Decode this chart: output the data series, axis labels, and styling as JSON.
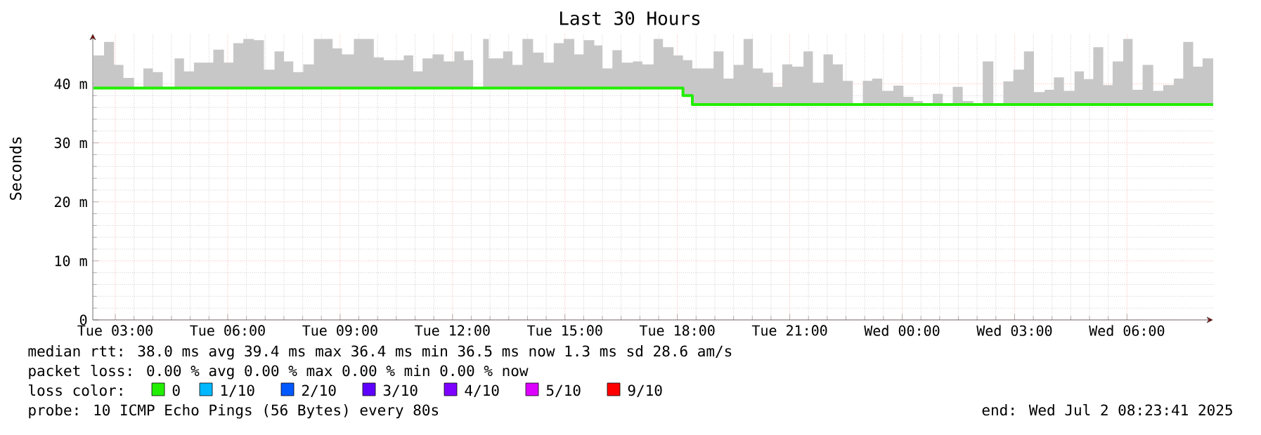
{
  "chart_data": {
    "type": "step",
    "title": "Last 30 Hours",
    "ylabel": "Seconds",
    "legend_title": "loss color:",
    "legend": "bottom",
    "grid": true,
    "xlim": [
      "2025-07-01T02:24",
      "2025-07-02T08:18"
    ],
    "ylim": [
      0,
      48.5
    ],
    "xticks": [
      {
        "value": "2025-07-01T03:00",
        "label": "Tue 03:00"
      },
      {
        "value": "2025-07-01T06:00",
        "label": "Tue 06:00"
      },
      {
        "value": "2025-07-01T09:00",
        "label": "Tue 09:00"
      },
      {
        "value": "2025-07-01T12:00",
        "label": "Tue 12:00"
      },
      {
        "value": "2025-07-01T15:00",
        "label": "Tue 15:00"
      },
      {
        "value": "2025-07-01T18:00",
        "label": "Tue 18:00"
      },
      {
        "value": "2025-07-01T21:00",
        "label": "Tue 21:00"
      },
      {
        "value": "2025-07-02T00:00",
        "label": "Wed 00:00"
      },
      {
        "value": "2025-07-02T03:00",
        "label": "Wed 03:00"
      },
      {
        "value": "2025-07-02T06:00",
        "label": "Wed 06:00"
      }
    ],
    "yticks": [
      0,
      {
        "value": 10,
        "label": "10 m"
      },
      {
        "value": 20,
        "label": "20 m"
      },
      {
        "value": 30,
        "label": "30 m"
      },
      {
        "value": 40,
        "label": "40 m"
      }
    ],
    "series": [
      {
        "name": "0",
        "color": "#22ee00",
        "x": [
          "2025-07-01T02:25",
          "2025-07-01T02:42",
          "2025-07-01T02:58",
          "2025-07-01T03:13",
          "2025-07-01T03:30",
          "2025-07-01T03:45",
          "2025-07-01T04:00",
          "2025-07-01T04:16",
          "2025-07-01T04:35",
          "2025-07-01T04:50",
          "2025-07-01T05:06",
          "2025-07-01T05:37",
          "2025-07-01T05:54",
          "2025-07-01T06:09",
          "2025-07-01T06:25",
          "2025-07-01T06:42",
          "2025-07-01T06:58",
          "2025-07-01T07:15",
          "2025-07-01T07:30",
          "2025-07-01T07:45",
          "2025-07-01T08:01",
          "2025-07-01T08:18",
          "2025-07-01T08:48",
          "2025-07-01T09:03",
          "2025-07-01T09:22",
          "2025-07-01T09:54",
          "2025-07-01T10:10",
          "2025-07-01T10:42",
          "2025-07-01T10:57",
          "2025-07-01T11:12",
          "2025-07-01T11:28",
          "2025-07-01T11:46",
          "2025-07-01T12:03",
          "2025-07-01T12:18",
          "2025-07-01T12:33",
          "2025-07-01T12:49",
          "2025-07-01T12:58",
          "2025-07-01T13:21",
          "2025-07-01T13:36",
          "2025-07-01T13:52",
          "2025-07-01T14:09",
          "2025-07-01T14:26",
          "2025-07-01T14:42",
          "2025-07-01T14:58",
          "2025-07-01T15:15",
          "2025-07-01T15:30",
          "2025-07-01T15:47",
          "2025-07-01T16:00",
          "2025-07-01T16:16",
          "2025-07-01T16:31",
          "2025-07-01T16:49",
          "2025-07-01T17:04",
          "2025-07-01T17:22",
          "2025-07-01T17:37",
          "2025-07-01T17:54",
          "2025-07-01T18:09",
          "2025-07-01T18:24",
          "2025-07-01T18:58",
          "2025-07-01T19:14",
          "2025-07-01T19:30",
          "2025-07-01T19:46",
          "2025-07-01T20:01",
          "2025-07-01T20:17",
          "2025-07-01T20:33",
          "2025-07-01T20:48",
          "2025-07-01T21:04",
          "2025-07-01T21:22",
          "2025-07-01T21:37",
          "2025-07-01T21:54",
          "2025-07-01T22:09",
          "2025-07-01T22:25",
          "2025-07-01T22:41",
          "2025-07-01T22:57",
          "2025-07-01T23:12",
          "2025-07-01T23:28",
          "2025-07-01T23:46",
          "2025-07-02T00:02",
          "2025-07-02T00:18",
          "2025-07-02T00:33",
          "2025-07-02T00:49",
          "2025-07-02T01:05",
          "2025-07-02T01:21",
          "2025-07-02T01:37",
          "2025-07-02T01:54",
          "2025-07-02T02:09",
          "2025-07-02T02:26",
          "2025-07-02T02:42",
          "2025-07-02T02:58",
          "2025-07-02T03:15",
          "2025-07-02T03:31",
          "2025-07-02T03:48",
          "2025-07-02T04:03",
          "2025-07-02T04:19",
          "2025-07-02T04:36",
          "2025-07-02T04:51",
          "2025-07-02T05:06",
          "2025-07-02T05:22",
          "2025-07-02T05:37",
          "2025-07-02T05:54",
          "2025-07-02T06:09",
          "2025-07-02T06:25",
          "2025-07-02T06:42",
          "2025-07-02T06:58",
          "2025-07-02T07:15",
          "2025-07-02T07:30",
          "2025-07-02T07:46",
          "2025-07-02T08:01",
          "2025-07-02T08:18"
        ],
        "values": [
          39.3,
          39.3,
          39.3,
          39.3,
          39.3,
          39.3,
          39.3,
          39.3,
          39.3,
          39.3,
          39.3,
          39.3,
          39.3,
          39.3,
          39.3,
          39.3,
          39.3,
          39.3,
          39.3,
          39.3,
          39.3,
          39.3,
          39.3,
          39.3,
          39.3,
          39.3,
          39.3,
          39.3,
          39.3,
          39.3,
          39.3,
          39.3,
          39.3,
          39.3,
          39.3,
          39.3,
          39.3,
          39.3,
          39.3,
          39.3,
          39.3,
          39.3,
          39.3,
          39.3,
          39.3,
          39.3,
          39.3,
          39.3,
          39.3,
          39.3,
          39.3,
          39.3,
          39.3,
          39.3,
          39.3,
          38.0,
          36.5,
          36.5,
          36.5,
          36.5,
          36.5,
          36.5,
          36.5,
          36.5,
          36.5,
          36.5,
          36.5,
          36.5,
          36.5,
          36.5,
          36.5,
          36.5,
          36.5,
          36.5,
          36.5,
          36.5,
          36.5,
          36.5,
          36.5,
          36.5,
          36.5,
          36.5,
          36.5,
          36.5,
          36.5,
          36.5,
          36.5,
          36.5,
          36.5,
          36.5,
          36.5,
          36.5,
          36.5,
          36.5,
          36.5,
          36.5,
          36.5,
          36.5,
          36.5,
          36.5,
          36.5,
          36.5,
          36.5,
          36.5,
          36.5,
          36.5,
          36.5,
          36.5
        ],
        "lower": [
          39.3,
          39.3,
          39.3,
          39.3,
          39.3,
          39.3,
          39.3,
          39.3,
          39.3,
          39.3,
          39.3,
          39.3,
          39.3,
          39.3,
          39.3,
          39.3,
          39.3,
          39.3,
          39.3,
          39.3,
          39.3,
          39.3,
          39.3,
          39.3,
          39.3,
          39.3,
          39.3,
          39.3,
          39.3,
          39.3,
          39.3,
          39.3,
          39.3,
          39.3,
          39.3,
          39.3,
          39.3,
          39.3,
          39.3,
          39.3,
          39.3,
          39.3,
          39.3,
          39.3,
          39.3,
          39.3,
          39.3,
          39.3,
          39.3,
          39.3,
          39.3,
          39.3,
          39.3,
          39.3,
          39.3,
          38.0,
          36.5,
          36.5,
          36.5,
          36.5,
          36.5,
          36.5,
          36.5,
          36.5,
          36.5,
          36.5,
          36.5,
          36.5,
          36.5,
          36.5,
          36.5,
          36.5,
          36.5,
          36.5,
          36.5,
          36.5,
          36.5,
          36.5,
          36.5,
          36.5,
          36.5,
          36.5,
          36.5,
          36.5,
          36.5,
          36.5,
          36.5,
          36.5,
          36.5,
          36.5,
          36.5,
          36.5,
          36.5,
          36.5,
          36.5,
          36.5,
          36.5,
          36.5,
          36.5,
          36.5,
          36.5,
          36.5,
          36.5,
          36.5,
          36.5,
          36.5,
          36.5,
          36.5
        ],
        "upper": [
          44.8,
          47.1,
          43.2,
          41.0,
          39.3,
          42.6,
          42.0,
          39.3,
          44.3,
          42.1,
          43.6,
          45.8,
          43.6,
          46.9,
          47.6,
          47.4,
          42.4,
          45.5,
          43.8,
          42.0,
          43.3,
          47.6,
          46.0,
          45.0,
          47.6,
          44.5,
          44.0,
          44.8,
          42.1,
          44.3,
          45.0,
          43.8,
          45.5,
          44.0,
          39.3,
          47.6,
          44.3,
          45.5,
          43.2,
          47.6,
          45.3,
          43.6,
          46.9,
          47.6,
          45.0,
          47.4,
          46.5,
          42.6,
          45.7,
          43.6,
          43.8,
          43.3,
          47.6,
          46.2,
          44.8,
          44.0,
          42.6,
          45.5,
          40.9,
          43.2,
          47.6,
          42.6,
          41.9,
          39.5,
          43.3,
          42.9,
          45.5,
          40.2,
          45.0,
          43.3,
          40.5,
          36.5,
          40.5,
          40.9,
          38.8,
          39.7,
          37.8,
          37.1,
          36.5,
          38.3,
          36.5,
          39.5,
          37.1,
          36.5,
          43.8,
          36.5,
          40.4,
          42.4,
          45.5,
          38.6,
          39.0,
          41.1,
          38.8,
          42.1,
          40.8,
          46.2,
          39.8,
          43.8,
          47.6,
          39.0,
          43.2,
          38.8,
          39.8,
          40.9,
          47.1,
          42.9,
          44.3,
          44.3
        ]
      },
      {
        "name": "1/10",
        "color": "#00b8ff"
      },
      {
        "name": "2/10",
        "color": "#0059ff"
      },
      {
        "name": "3/10",
        "color": "#5e00ff"
      },
      {
        "name": "4/10",
        "color": "#7e00ff"
      },
      {
        "name": "5/10",
        "color": "#dd00ff"
      },
      {
        "name": "9/10",
        "color": "#ff0000"
      }
    ],
    "annotations": [
      "median rtt:  38.0 ms avg  39.4 ms max  36.4 ms min  36.5 ms now  1.3 ms sd  28.6   am/s",
      "packet loss: 0.00 % avg  0.00 % max  0.00 % min  0.00 % now",
      "probe:       10 ICMP Echo Pings (56 Bytes) every 80s",
      "end: Wed Jul  2 08:23:41 2025"
    ]
  }
}
